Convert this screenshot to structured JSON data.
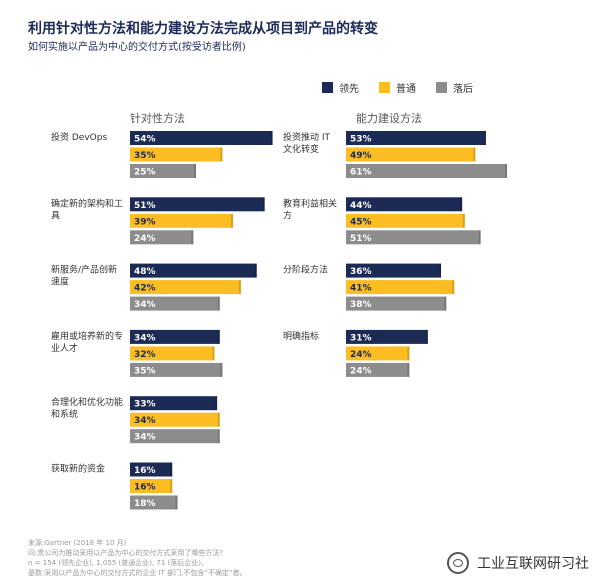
{
  "title": "利用针对性方法和能力建设方法完成从项目到产品的转变",
  "subtitle": "如何实施以产品为中心的交付方式(按受访者比例)",
  "legend": [
    {
      "label": "领先",
      "color": "#1c2a56"
    },
    {
      "label": "普通",
      "color": "#fbbd22"
    },
    {
      "label": "落后",
      "color": "#8c8c8c"
    }
  ],
  "chart_data": [
    {
      "type": "bar",
      "title": "针对性方法",
      "orientation": "horizontal",
      "categories": [
        "投资 DevOps",
        "确定新的架构和工具",
        "新服务/产品创新速度",
        "雇用或培养新的专业人才",
        "合理化和优化功能和系统",
        "获取新的资金"
      ],
      "series": [
        {
          "name": "领先",
          "values": [
            54,
            51,
            48,
            34,
            33,
            16
          ]
        },
        {
          "name": "普通",
          "values": [
            35,
            39,
            42,
            32,
            34,
            16
          ]
        },
        {
          "name": "落后",
          "values": [
            25,
            24,
            34,
            35,
            34,
            18
          ]
        }
      ],
      "unit": "%",
      "xlim": [
        0,
        55
      ]
    },
    {
      "type": "bar",
      "title": "能力建设方法",
      "orientation": "horizontal",
      "categories": [
        "投资推动 IT 文化转变",
        "教育利益相关方",
        "分阶段方法",
        "明确指标"
      ],
      "series": [
        {
          "name": "领先",
          "values": [
            53,
            44,
            36,
            31
          ]
        },
        {
          "name": "普通",
          "values": [
            49,
            45,
            41,
            24
          ]
        },
        {
          "name": "落后",
          "values": [
            61,
            51,
            38,
            24
          ]
        }
      ],
      "unit": "%",
      "xlim": [
        0,
        61
      ]
    }
  ],
  "notes": [
    "来源:Gartner (2018 年 10 月)",
    "问:贵公司为推动采用以产品为中心的交付方式采用了哪些方法?",
    "n = 154 (领先企业), 1,055 (普通企业), 71 (落后企业)。",
    "基数:采用以产品为中心的交付方式的企业 IT 部门,不包含“不确定”者。"
  ],
  "brand": "工业互联网研习社"
}
